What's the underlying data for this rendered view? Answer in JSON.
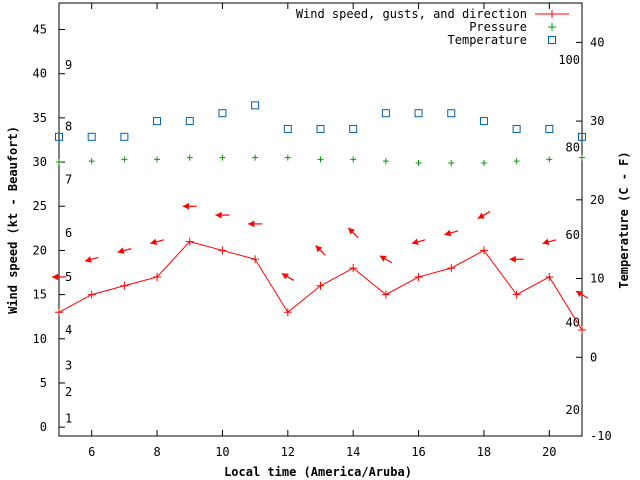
{
  "chart_data": {
    "type": "line",
    "xlabel": "Local time (America/Aruba)",
    "ylabel_left": "Wind speed (kt - Beaufort)",
    "ylabel_right": "Temperature (C - F)",
    "xlim": [
      5,
      21
    ],
    "ylim_left": [
      -1,
      48
    ],
    "ylim_right": [
      -10,
      45
    ],
    "xticks": [
      "6",
      "8",
      "10",
      "12",
      "14",
      "16",
      "18",
      "20"
    ],
    "yticks_left": [
      "0",
      "5",
      "10",
      "15",
      "20",
      "25",
      "30",
      "35",
      "40",
      "45"
    ],
    "yticks_right_c": [
      "-10",
      "0",
      "10",
      "20",
      "30",
      "40"
    ],
    "beaufort_scale": [
      "1",
      "2",
      "3",
      "4",
      "5",
      "6",
      "7",
      "8",
      "9"
    ],
    "fahrenheit_ticks": [
      "20",
      "40",
      "60",
      "80",
      "100"
    ],
    "legend": [
      "Wind speed, gusts, and direction",
      "Pressure",
      "Temperature"
    ],
    "colors": {
      "wind": "#ff0000",
      "pressure": "#00a000",
      "temperature": "#0060ad"
    },
    "series": [
      {
        "name": "Wind speed, gusts, and direction",
        "x": [
          5,
          6,
          7,
          8,
          9,
          10,
          11,
          12,
          13,
          14,
          15,
          16,
          17,
          18,
          19,
          20,
          21
        ],
        "values": [
          13,
          15,
          16,
          17,
          21,
          20,
          19,
          13,
          16,
          18,
          15,
          17,
          18,
          20,
          15,
          17,
          11
        ],
        "arrow_y": [
          17,
          19,
          20,
          21,
          25,
          24,
          23,
          17,
          20,
          22,
          19,
          21,
          22,
          24,
          19,
          21,
          15
        ],
        "direction_deg": [
          90,
          75,
          75,
          75,
          90,
          90,
          90,
          120,
          135,
          135,
          120,
          75,
          75,
          60,
          90,
          75,
          120
        ]
      },
      {
        "name": "Pressure",
        "x": [
          5,
          6,
          7,
          8,
          9,
          10,
          11,
          12,
          13,
          14,
          15,
          16,
          17,
          18,
          19,
          20,
          21
        ],
        "values": [
          30.0,
          30.1,
          30.3,
          30.3,
          30.5,
          30.5,
          30.5,
          30.5,
          30.3,
          30.3,
          30.1,
          29.9,
          29.9,
          29.9,
          30.1,
          30.3,
          30.5
        ]
      },
      {
        "name": "Temperature",
        "x": [
          5,
          6,
          7,
          8,
          9,
          10,
          11,
          12,
          13,
          14,
          15,
          16,
          17,
          18,
          19,
          20,
          21
        ],
        "values": [
          28,
          28,
          28,
          30,
          30,
          31,
          32,
          29,
          29,
          29,
          31,
          31,
          31,
          30,
          29,
          29,
          28
        ]
      }
    ]
  }
}
